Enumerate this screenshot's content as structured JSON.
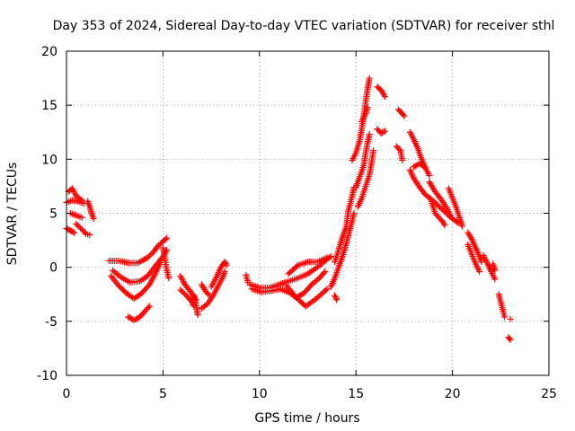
{
  "chart_data": {
    "type": "scatter",
    "title": "Day 353 of 2024, Sidereal Day-to-day VTEC variation (SDTVAR) for receiver sthl",
    "xlabel": "GPS time / hours",
    "ylabel": "SDTVAR / TECUs",
    "xlim": [
      0,
      25
    ],
    "ylim": [
      -10,
      20
    ],
    "xticks": [
      0,
      5,
      10,
      15,
      20,
      25
    ],
    "yticks": [
      -10,
      -5,
      0,
      5,
      10,
      15,
      20
    ],
    "grid": true,
    "marker": "+",
    "color": "#ff0000",
    "tracks": [
      [
        [
          0.0,
          3.6
        ],
        [
          0.2,
          3.4
        ],
        [
          0.4,
          3.2
        ]
      ],
      [
        [
          0.1,
          7.0
        ],
        [
          0.3,
          7.3
        ],
        [
          0.5,
          6.6
        ],
        [
          0.8,
          6.2
        ]
      ],
      [
        [
          0.0,
          6.0
        ],
        [
          0.3,
          6.2
        ],
        [
          0.6,
          6.1
        ],
        [
          0.9,
          5.9
        ]
      ],
      [
        [
          0.2,
          5.0
        ],
        [
          0.5,
          4.8
        ],
        [
          0.8,
          4.6
        ]
      ],
      [
        [
          0.5,
          4.0
        ],
        [
          0.8,
          3.5
        ],
        [
          1.0,
          3.1
        ],
        [
          1.2,
          3.0
        ]
      ],
      [
        [
          1.1,
          6.1
        ],
        [
          1.2,
          5.6
        ],
        [
          1.3,
          5.0
        ],
        [
          1.4,
          4.5
        ]
      ],
      [
        [
          2.2,
          0.6
        ],
        [
          2.7,
          0.6
        ],
        [
          3.2,
          0.4
        ],
        [
          3.7,
          0.4
        ],
        [
          4.2,
          0.9
        ],
        [
          4.5,
          1.4
        ],
        [
          4.7,
          1.9
        ],
        [
          5.0,
          2.4
        ],
        [
          5.2,
          2.7
        ]
      ],
      [
        [
          2.4,
          -0.3
        ],
        [
          2.8,
          -0.9
        ],
        [
          3.3,
          -1.4
        ],
        [
          3.8,
          -1.3
        ],
        [
          4.2,
          -0.8
        ],
        [
          4.6,
          0.1
        ],
        [
          5.0,
          1.0
        ],
        [
          5.2,
          1.6
        ]
      ],
      [
        [
          2.3,
          -0.8
        ],
        [
          2.7,
          -1.7
        ],
        [
          3.1,
          -2.4
        ],
        [
          3.5,
          -2.9
        ],
        [
          3.9,
          -2.4
        ],
        [
          4.3,
          -1.6
        ],
        [
          4.6,
          -0.6
        ],
        [
          4.9,
          0.6
        ]
      ],
      [
        [
          3.2,
          -4.6
        ],
        [
          3.5,
          -4.9
        ],
        [
          3.8,
          -4.6
        ],
        [
          4.1,
          -4.0
        ],
        [
          4.3,
          -3.6
        ]
      ],
      [
        [
          5.0,
          1.8
        ],
        [
          5.1,
          0.8
        ],
        [
          5.2,
          -0.3
        ],
        [
          5.3,
          -1.0
        ]
      ],
      [
        [
          5.9,
          -0.8
        ],
        [
          6.1,
          -1.5
        ],
        [
          6.4,
          -2.2
        ],
        [
          6.7,
          -3.0
        ]
      ],
      [
        [
          5.9,
          -2.1
        ],
        [
          6.2,
          -2.6
        ],
        [
          6.5,
          -3.2
        ],
        [
          6.6,
          -3.6
        ]
      ],
      [
        [
          6.6,
          -2.6
        ],
        [
          6.7,
          -3.4
        ],
        [
          6.8,
          -4.4
        ]
      ],
      [
        [
          7.0,
          -1.6
        ],
        [
          7.2,
          -2.2
        ],
        [
          7.4,
          -2.6
        ]
      ],
      [
        [
          7.0,
          -3.8
        ],
        [
          7.3,
          -3.4
        ],
        [
          7.6,
          -2.6
        ],
        [
          7.9,
          -1.6
        ],
        [
          8.1,
          -0.9
        ],
        [
          8.2,
          -0.4
        ]
      ],
      [
        [
          7.5,
          -1.8
        ],
        [
          7.8,
          -0.8
        ],
        [
          8.0,
          0.0
        ],
        [
          8.2,
          0.5
        ],
        [
          8.3,
          0.2
        ]
      ],
      [
        [
          9.3,
          -0.7
        ],
        [
          9.4,
          -1.4
        ]
      ],
      [
        [
          9.5,
          -1.6
        ],
        [
          10.0,
          -1.9
        ],
        [
          10.5,
          -1.9
        ],
        [
          11.0,
          -1.6
        ],
        [
          11.5,
          -1.3
        ],
        [
          12.0,
          -1.0
        ],
        [
          12.5,
          -0.6
        ],
        [
          13.0,
          0.0
        ],
        [
          13.4,
          0.6
        ],
        [
          13.7,
          1.0
        ]
      ],
      [
        [
          9.6,
          -2.0
        ],
        [
          10.1,
          -2.3
        ],
        [
          10.6,
          -2.2
        ],
        [
          11.1,
          -2.0
        ],
        [
          11.6,
          -2.4
        ],
        [
          11.9,
          -2.8
        ],
        [
          12.3,
          -2.4
        ],
        [
          12.7,
          -1.6
        ],
        [
          13.1,
          -1.0
        ],
        [
          13.4,
          -0.4
        ]
      ],
      [
        [
          11.4,
          -1.7
        ],
        [
          11.8,
          -2.6
        ],
        [
          12.2,
          -3.3
        ],
        [
          12.4,
          -3.6
        ],
        [
          12.8,
          -3.1
        ],
        [
          13.2,
          -2.5
        ],
        [
          13.5,
          -2.0
        ]
      ],
      [
        [
          11.5,
          -0.6
        ],
        [
          12.0,
          0.2
        ],
        [
          12.5,
          0.5
        ],
        [
          13.0,
          0.5
        ],
        [
          13.5,
          0.9
        ]
      ],
      [
        [
          13.7,
          -1.8
        ],
        [
          13.9,
          -1.0
        ],
        [
          14.1,
          0.0
        ],
        [
          14.3,
          1.0
        ],
        [
          14.5,
          2.2
        ],
        [
          14.7,
          3.6
        ],
        [
          14.9,
          5.0
        ]
      ],
      [
        [
          13.9,
          -2.6
        ],
        [
          14.0,
          -3.0
        ]
      ],
      [
        [
          13.9,
          0.5
        ],
        [
          14.1,
          1.6
        ],
        [
          14.3,
          2.8
        ],
        [
          14.5,
          3.8
        ],
        [
          14.6,
          5.2
        ],
        [
          14.8,
          6.6
        ],
        [
          14.9,
          7.4
        ]
      ],
      [
        [
          14.8,
          9.9
        ],
        [
          15.0,
          10.6
        ],
        [
          15.2,
          11.8
        ],
        [
          15.3,
          12.8
        ],
        [
          15.4,
          14.0
        ],
        [
          15.5,
          15.3
        ],
        [
          15.6,
          16.5
        ],
        [
          15.7,
          17.5
        ]
      ],
      [
        [
          15.0,
          7.4
        ],
        [
          15.2,
          8.4
        ],
        [
          15.4,
          9.4
        ],
        [
          15.5,
          10.6
        ],
        [
          15.6,
          11.5
        ],
        [
          15.7,
          12.3
        ]
      ],
      [
        [
          15.1,
          5.6
        ],
        [
          15.3,
          6.4
        ],
        [
          15.5,
          7.5
        ],
        [
          15.7,
          8.6
        ],
        [
          15.8,
          9.6
        ],
        [
          15.9,
          10.8
        ]
      ],
      [
        [
          15.3,
          13.5
        ],
        [
          15.5,
          14.2
        ],
        [
          15.6,
          14.8
        ]
      ],
      [
        [
          16.1,
          16.7
        ],
        [
          16.3,
          16.4
        ],
        [
          16.5,
          15.8
        ]
      ],
      [
        [
          16.1,
          12.8
        ],
        [
          16.3,
          12.4
        ],
        [
          16.5,
          12.6
        ]
      ],
      [
        [
          17.2,
          14.6
        ],
        [
          17.5,
          14.0
        ]
      ],
      [
        [
          17.1,
          11.2
        ],
        [
          17.3,
          10.8
        ],
        [
          17.4,
          9.9
        ]
      ],
      [
        [
          17.8,
          12.5
        ],
        [
          18.0,
          11.8
        ],
        [
          18.2,
          11.0
        ],
        [
          18.4,
          10.0
        ],
        [
          18.6,
          9.2
        ],
        [
          18.8,
          8.5
        ]
      ],
      [
        [
          17.8,
          9.0
        ],
        [
          18.0,
          8.2
        ],
        [
          18.3,
          7.4
        ],
        [
          18.6,
          6.7
        ],
        [
          18.9,
          6.3
        ],
        [
          19.2,
          5.8
        ],
        [
          19.5,
          5.3
        ],
        [
          19.8,
          4.8
        ],
        [
          20.0,
          4.5
        ],
        [
          20.3,
          4.1
        ]
      ],
      [
        [
          18.0,
          9.3
        ],
        [
          18.3,
          9.6
        ],
        [
          18.6,
          9.2
        ]
      ],
      [
        [
          18.8,
          7.9
        ],
        [
          19.1,
          7.0
        ],
        [
          19.4,
          6.3
        ],
        [
          19.7,
          5.5
        ],
        [
          19.9,
          4.8
        ]
      ],
      [
        [
          18.9,
          6.1
        ],
        [
          19.1,
          5.0
        ],
        [
          19.3,
          4.6
        ],
        [
          19.5,
          4.2
        ],
        [
          19.6,
          3.9
        ]
      ],
      [
        [
          19.8,
          7.3
        ],
        [
          20.0,
          6.4
        ],
        [
          20.2,
          5.5
        ],
        [
          20.4,
          4.4
        ],
        [
          20.5,
          3.8
        ]
      ],
      [
        [
          20.8,
          3.2
        ],
        [
          21.0,
          2.6
        ],
        [
          21.2,
          1.8
        ],
        [
          21.4,
          1.0
        ],
        [
          21.5,
          0.5
        ]
      ],
      [
        [
          20.8,
          2.1
        ],
        [
          21.0,
          1.2
        ],
        [
          21.2,
          0.3
        ],
        [
          21.4,
          -0.4
        ]
      ],
      [
        [
          21.6,
          1.1
        ],
        [
          21.8,
          0.4
        ],
        [
          22.0,
          -0.4
        ],
        [
          22.2,
          -1.1
        ]
      ],
      [
        [
          22.1,
          0.3
        ],
        [
          22.2,
          -0.3
        ]
      ],
      [
        [
          22.4,
          -2.5
        ],
        [
          22.5,
          -3.2
        ],
        [
          22.6,
          -3.9
        ],
        [
          22.7,
          -4.6
        ]
      ],
      [
        [
          23.0,
          -4.8
        ]
      ],
      [
        [
          22.9,
          -6.5
        ],
        [
          23.0,
          -6.7
        ]
      ]
    ]
  }
}
